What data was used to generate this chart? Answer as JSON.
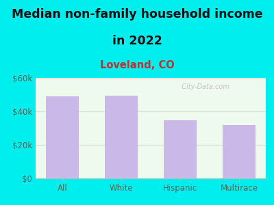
{
  "title_line1": "Median non-family household income",
  "title_line2": "in 2022",
  "subtitle": "Loveland, CO",
  "categories": [
    "All",
    "White",
    "Hispanic",
    "Multirace"
  ],
  "values": [
    49000,
    49500,
    34500,
    32000
  ],
  "bar_color": "#c9b8e8",
  "bar_edgecolor": "none",
  "background_outer": "#00eeee",
  "background_chart": "#eefaee",
  "title_color": "#111111",
  "subtitle_color": "#bb3333",
  "tick_label_color": "#556655",
  "grid_color": "#ddcccc",
  "ylim": [
    0,
    60000
  ],
  "yticks": [
    0,
    20000,
    40000,
    60000
  ],
  "ytick_labels": [
    "$0",
    "$20k",
    "$40k",
    "$60k"
  ],
  "watermark": "  City-Data.com",
  "title_fontsize": 12.5,
  "subtitle_fontsize": 10.5,
  "tick_fontsize": 8.5
}
